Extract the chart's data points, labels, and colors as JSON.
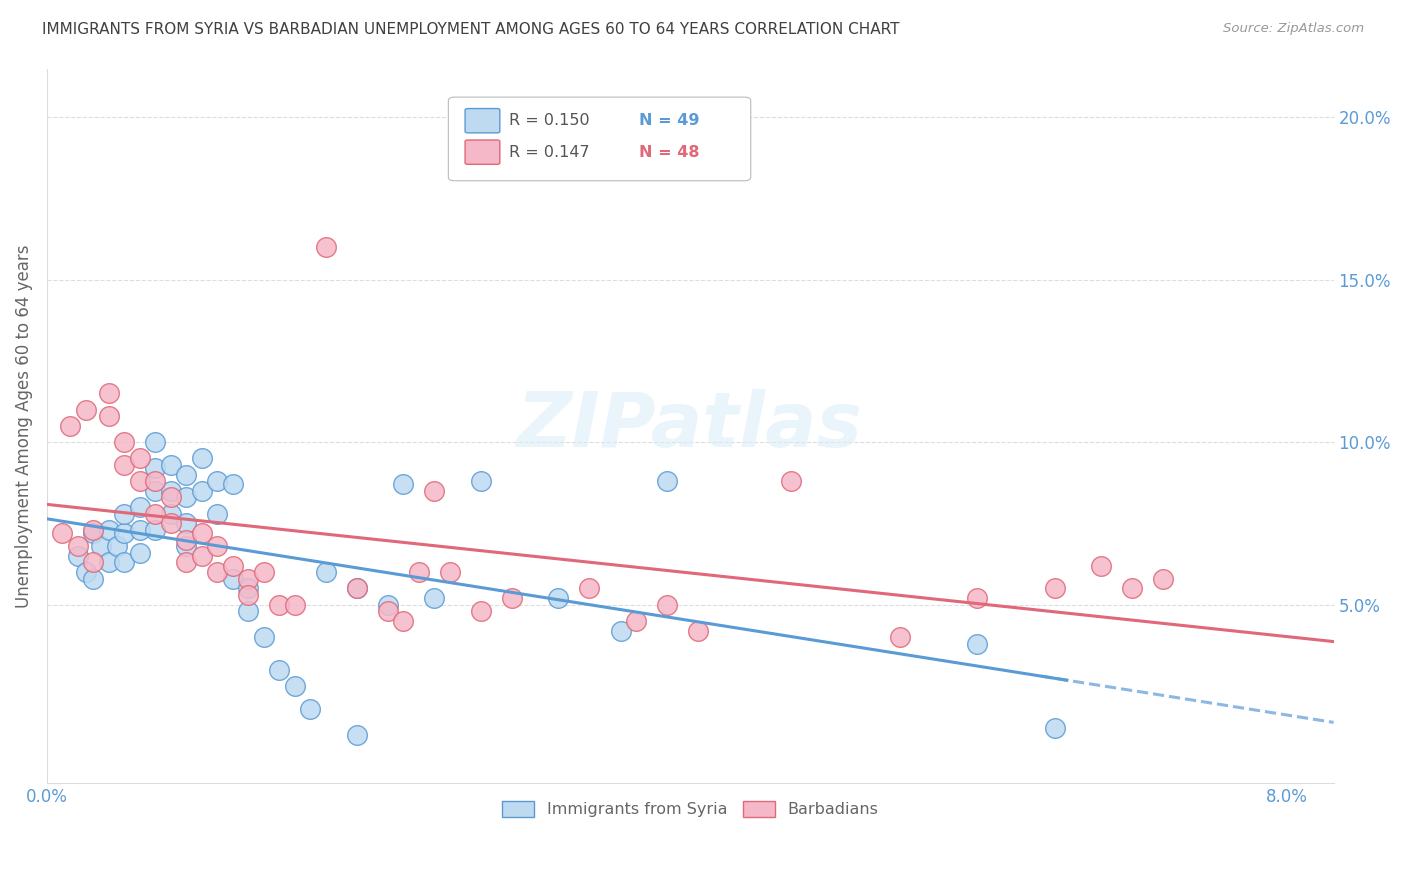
{
  "title": "IMMIGRANTS FROM SYRIA VS BARBADIAN UNEMPLOYMENT AMONG AGES 60 TO 64 YEARS CORRELATION CHART",
  "source": "Source: ZipAtlas.com",
  "ylabel": "Unemployment Among Ages 60 to 64 years",
  "xlim": [
    0.0,
    0.083
  ],
  "ylim": [
    -0.005,
    0.215
  ],
  "xticks": [
    0.0,
    0.01,
    0.02,
    0.03,
    0.04,
    0.05,
    0.06,
    0.07,
    0.08
  ],
  "yticks_right": [
    0.0,
    0.05,
    0.1,
    0.15,
    0.2
  ],
  "ytick_labels_right": [
    "",
    "5.0%",
    "10.0%",
    "15.0%",
    "20.0%"
  ],
  "legend_r1": "R = 0.150",
  "legend_n1": "N = 49",
  "legend_r2": "R = 0.147",
  "legend_n2": "N = 48",
  "series1_label": "Immigrants from Syria",
  "series2_label": "Barbadians",
  "color1": "#bedaf0",
  "color2": "#f5b8c8",
  "line_color1": "#5b9bd5",
  "line_color2": "#e06878",
  "axis_color": "#5b9bd5",
  "watermark": "ZIPatlas",
  "series1_x": [
    0.002,
    0.0025,
    0.003,
    0.003,
    0.0035,
    0.004,
    0.004,
    0.0045,
    0.005,
    0.005,
    0.005,
    0.006,
    0.006,
    0.006,
    0.007,
    0.007,
    0.007,
    0.007,
    0.008,
    0.008,
    0.008,
    0.009,
    0.009,
    0.009,
    0.009,
    0.01,
    0.01,
    0.011,
    0.011,
    0.012,
    0.012,
    0.013,
    0.013,
    0.014,
    0.015,
    0.016,
    0.017,
    0.018,
    0.02,
    0.02,
    0.022,
    0.023,
    0.025,
    0.028,
    0.033,
    0.037,
    0.04,
    0.06,
    0.065
  ],
  "series1_y": [
    0.065,
    0.06,
    0.058,
    0.072,
    0.068,
    0.063,
    0.073,
    0.068,
    0.063,
    0.072,
    0.078,
    0.08,
    0.073,
    0.066,
    0.1,
    0.092,
    0.085,
    0.073,
    0.093,
    0.085,
    0.078,
    0.09,
    0.083,
    0.075,
    0.068,
    0.095,
    0.085,
    0.088,
    0.078,
    0.087,
    0.058,
    0.055,
    0.048,
    0.04,
    0.03,
    0.025,
    0.018,
    0.06,
    0.055,
    0.01,
    0.05,
    0.087,
    0.052,
    0.088,
    0.052,
    0.042,
    0.088,
    0.038,
    0.012
  ],
  "series2_x": [
    0.001,
    0.0015,
    0.002,
    0.0025,
    0.003,
    0.003,
    0.004,
    0.004,
    0.005,
    0.005,
    0.006,
    0.006,
    0.007,
    0.007,
    0.008,
    0.008,
    0.009,
    0.009,
    0.01,
    0.01,
    0.011,
    0.011,
    0.012,
    0.013,
    0.013,
    0.014,
    0.015,
    0.016,
    0.018,
    0.02,
    0.022,
    0.023,
    0.024,
    0.025,
    0.026,
    0.028,
    0.03,
    0.035,
    0.038,
    0.04,
    0.042,
    0.048,
    0.055,
    0.06,
    0.065,
    0.068,
    0.07,
    0.072
  ],
  "series2_y": [
    0.072,
    0.105,
    0.068,
    0.11,
    0.073,
    0.063,
    0.115,
    0.108,
    0.1,
    0.093,
    0.095,
    0.088,
    0.088,
    0.078,
    0.083,
    0.075,
    0.07,
    0.063,
    0.072,
    0.065,
    0.068,
    0.06,
    0.062,
    0.058,
    0.053,
    0.06,
    0.05,
    0.05,
    0.16,
    0.055,
    0.048,
    0.045,
    0.06,
    0.085,
    0.06,
    0.048,
    0.052,
    0.055,
    0.045,
    0.05,
    0.042,
    0.088,
    0.04,
    0.052,
    0.055,
    0.062,
    0.055,
    0.058
  ]
}
